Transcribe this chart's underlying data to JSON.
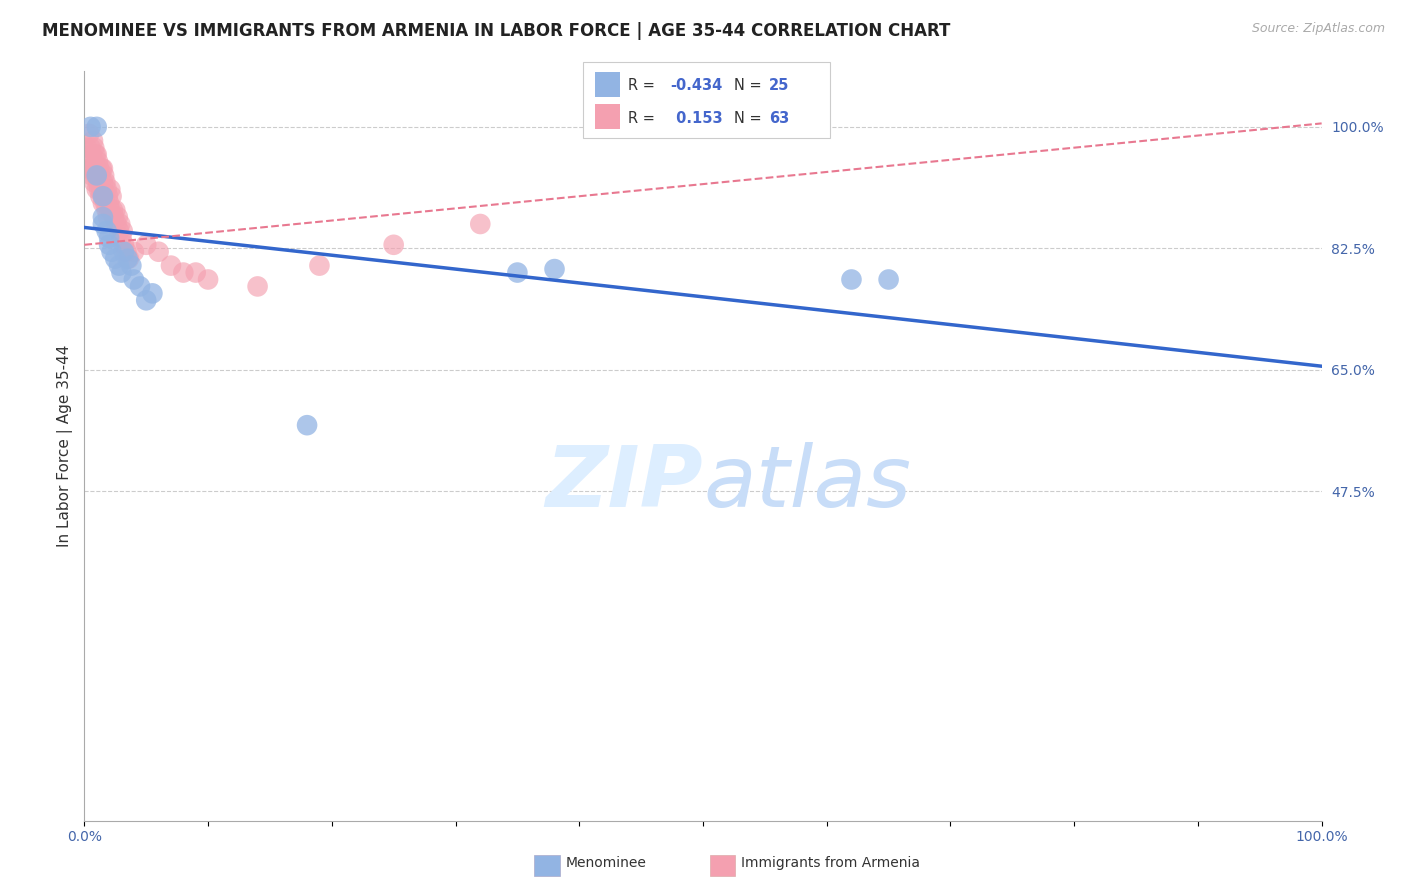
{
  "title": "MENOMINEE VS IMMIGRANTS FROM ARMENIA IN LABOR FORCE | AGE 35-44 CORRELATION CHART",
  "source_text": "Source: ZipAtlas.com",
  "ylabel": "In Labor Force | Age 35-44",
  "xlim": [
    0.0,
    1.0
  ],
  "ylim": [
    0.0,
    1.08
  ],
  "ytick_labels_right": [
    "47.5%",
    "65.0%",
    "82.5%",
    "100.0%"
  ],
  "ytick_vals_right": [
    0.475,
    0.65,
    0.825,
    1.0
  ],
  "color_menominee": "#92b4e3",
  "color_armenia": "#f4a0b0",
  "color_menominee_line": "#3366cc",
  "color_armenia_line": "#e87890",
  "watermark_color": "#ddeeff",
  "background_color": "#ffffff",
  "grid_color": "#cccccc",
  "menominee_x": [
    0.005,
    0.01,
    0.01,
    0.015,
    0.015,
    0.015,
    0.018,
    0.02,
    0.02,
    0.022,
    0.025,
    0.028,
    0.03,
    0.032,
    0.035,
    0.038,
    0.04,
    0.045,
    0.05,
    0.055,
    0.18,
    0.35,
    0.38,
    0.62,
    0.65
  ],
  "menominee_y": [
    1.0,
    1.0,
    0.93,
    0.9,
    0.87,
    0.86,
    0.85,
    0.84,
    0.83,
    0.82,
    0.81,
    0.8,
    0.79,
    0.82,
    0.81,
    0.8,
    0.78,
    0.77,
    0.75,
    0.76,
    0.57,
    0.79,
    0.795,
    0.78,
    0.78
  ],
  "armenia_x": [
    0.002,
    0.003,
    0.004,
    0.005,
    0.005,
    0.006,
    0.006,
    0.007,
    0.007,
    0.008,
    0.008,
    0.008,
    0.009,
    0.009,
    0.01,
    0.01,
    0.01,
    0.011,
    0.011,
    0.012,
    0.012,
    0.013,
    0.013,
    0.014,
    0.014,
    0.015,
    0.015,
    0.015,
    0.016,
    0.016,
    0.017,
    0.017,
    0.018,
    0.018,
    0.019,
    0.019,
    0.02,
    0.021,
    0.021,
    0.022,
    0.023,
    0.024,
    0.025,
    0.026,
    0.027,
    0.028,
    0.029,
    0.03,
    0.031,
    0.032,
    0.034,
    0.036,
    0.04,
    0.05,
    0.06,
    0.07,
    0.08,
    0.09,
    0.1,
    0.14,
    0.19,
    0.25,
    0.32
  ],
  "armenia_y": [
    0.97,
    0.94,
    0.99,
    0.97,
    0.94,
    0.96,
    0.93,
    0.98,
    0.94,
    0.97,
    0.95,
    0.92,
    0.96,
    0.93,
    0.96,
    0.94,
    0.91,
    0.95,
    0.92,
    0.94,
    0.91,
    0.93,
    0.9,
    0.94,
    0.91,
    0.94,
    0.92,
    0.89,
    0.93,
    0.9,
    0.92,
    0.89,
    0.91,
    0.88,
    0.9,
    0.87,
    0.89,
    0.91,
    0.88,
    0.9,
    0.88,
    0.87,
    0.88,
    0.86,
    0.87,
    0.85,
    0.86,
    0.84,
    0.85,
    0.83,
    0.82,
    0.81,
    0.82,
    0.83,
    0.82,
    0.8,
    0.79,
    0.79,
    0.78,
    0.77,
    0.8,
    0.83,
    0.86
  ],
  "men_line_x": [
    0.0,
    1.0
  ],
  "men_line_y": [
    0.855,
    0.655
  ],
  "arm_line_x": [
    0.0,
    1.0
  ],
  "arm_line_y": [
    0.83,
    1.005
  ],
  "title_fontsize": 12,
  "tick_fontsize": 10,
  "source_fontsize": 9,
  "ylabel_fontsize": 11
}
